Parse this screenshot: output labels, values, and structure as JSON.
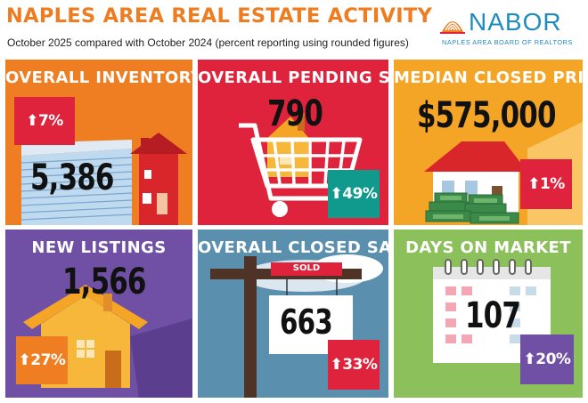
{
  "header": {
    "title": "NAPLES AREA REAL ESTATE ACTIVITY",
    "subtitle": "October 2025 compared with October 2024 (percent reporting using rounded figures)"
  },
  "logo": {
    "wordmark": "NABOR",
    "tagline": "NAPLES AREA BOARD OF REALTORS",
    "icon": "shell-icon"
  },
  "colors": {
    "orange": "#ef7d22",
    "red": "#e0233c",
    "gold": "#f4a525",
    "purple": "#7050a5",
    "steel": "#5a8fae",
    "green": "#8bc05b"
  },
  "tiles": [
    {
      "title": "OVERALL INVENTORY",
      "value": "5,386",
      "change": "7%",
      "direction": "up",
      "icon": "house-icon"
    },
    {
      "title": "OVERALL PENDING SALES",
      "value": "790",
      "change": "49%",
      "direction": "up",
      "icon": "shopping-cart-icon"
    },
    {
      "title": "MEDIAN CLOSED PRICE",
      "value": "$575,000",
      "change": "1%",
      "direction": "up",
      "icon": "house-money-icon"
    },
    {
      "title": "NEW LISTINGS",
      "value": "1,566",
      "change": "27%",
      "direction": "up",
      "icon": "house-icon"
    },
    {
      "title": "OVERALL CLOSED SALES",
      "value": "663",
      "change": "33%",
      "direction": "up",
      "icon": "sold-sign-icon",
      "sign_text": "SOLD"
    },
    {
      "title": "DAYS ON MARKET",
      "value": "107",
      "change": "20%",
      "direction": "up",
      "icon": "calendar-icon"
    }
  ]
}
